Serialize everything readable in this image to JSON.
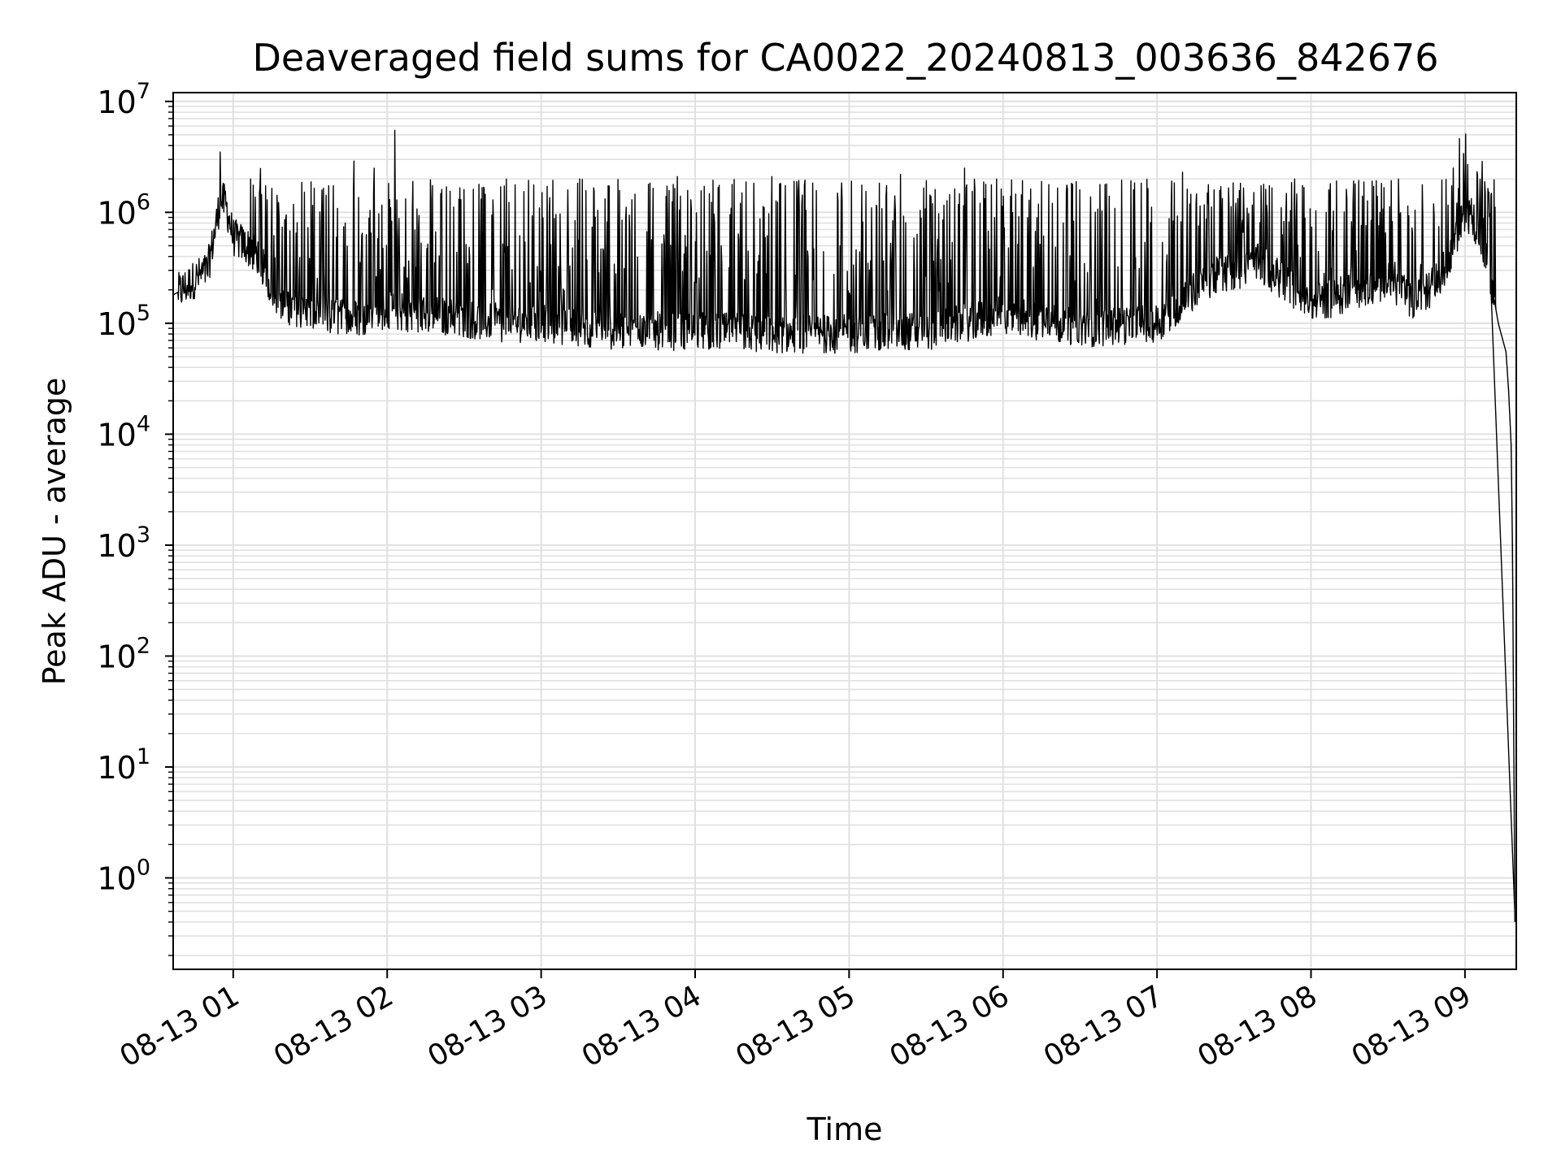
{
  "chart_data": {
    "type": "line",
    "title": "Deaveraged field sums for CA0022_20240813_003636_842676",
    "xlabel": "Time",
    "ylabel": "Peak ADU - average",
    "yscale": "log",
    "ylim": [
      0.15,
      12000000
    ],
    "xlim": [
      "2024-08-13 00:36:36",
      "2024-08-13 09:20:00"
    ],
    "x_ticks": [
      {
        "label": "08-13 01",
        "time": "2024-08-13 01:00"
      },
      {
        "label": "08-13 02",
        "time": "2024-08-13 02:00"
      },
      {
        "label": "08-13 03",
        "time": "2024-08-13 03:00"
      },
      {
        "label": "08-13 04",
        "time": "2024-08-13 04:00"
      },
      {
        "label": "08-13 05",
        "time": "2024-08-13 05:00"
      },
      {
        "label": "08-13 06",
        "time": "2024-08-13 06:00"
      },
      {
        "label": "08-13 07",
        "time": "2024-08-13 07:00"
      },
      {
        "label": "08-13 08",
        "time": "2024-08-13 08:00"
      },
      {
        "label": "08-13 09",
        "time": "2024-08-13 09:00"
      }
    ],
    "y_ticks": [
      {
        "value": 1,
        "base": "10",
        "exp": "0"
      },
      {
        "value": 10,
        "base": "10",
        "exp": "1"
      },
      {
        "value": 100,
        "base": "10",
        "exp": "2"
      },
      {
        "value": 1000,
        "base": "10",
        "exp": "3"
      },
      {
        "value": 10000,
        "base": "10",
        "exp": "4"
      },
      {
        "value": 100000,
        "base": "10",
        "exp": "5"
      },
      {
        "value": 1000000,
        "base": "10",
        "exp": "6"
      },
      {
        "value": 10000000,
        "base": "10",
        "exp": "7"
      }
    ],
    "grid": true,
    "line_color": "#000000",
    "grid_color": "#e0e0e0",
    "series": [
      {
        "x": [
          "2024-08-13 00:36:36",
          "2024-08-13 00:40",
          "2024-08-13 00:45",
          "2024-08-13 00:50",
          "2024-08-13 00:53",
          "2024-08-13 00:55",
          "2024-08-13 00:57",
          "2024-08-13 01:00",
          "2024-08-13 01:05",
          "2024-08-13 01:10",
          "2024-08-13 01:15",
          "2024-08-13 01:20",
          "2024-08-13 01:30",
          "2024-08-13 01:45",
          "2024-08-13 02:00",
          "2024-08-13 02:15",
          "2024-08-13 02:30",
          "2024-08-13 02:45",
          "2024-08-13 03:00",
          "2024-08-13 03:30",
          "2024-08-13 04:00",
          "2024-08-13 04:30",
          "2024-08-13 05:00",
          "2024-08-13 05:30",
          "2024-08-13 06:00",
          "2024-08-13 06:30",
          "2024-08-13 07:00",
          "2024-08-13 07:20",
          "2024-08-13 07:40",
          "2024-08-13 08:00",
          "2024-08-13 08:20",
          "2024-08-13 08:30",
          "2024-08-13 08:40",
          "2024-08-13 08:50",
          "2024-08-13 08:55",
          "2024-08-13 09:00",
          "2024-08-13 09:03",
          "2024-08-13 09:06",
          "2024-08-13 09:10",
          "2024-08-13 09:13",
          "2024-08-13 09:16",
          "2024-08-13 09:17",
          "2024-08-13 09:18",
          "2024-08-13 09:18:30",
          "2024-08-13 09:19:00",
          "2024-08-13 09:19:10",
          "2024-08-13 09:19:20",
          "2024-08-13 09:19:25"
        ],
        "values": [
          180000,
          200000,
          250000,
          300000,
          700000,
          1300000,
          1200000,
          600000,
          500000,
          400000,
          200000,
          150000,
          120000,
          110000,
          130000,
          120000,
          110000,
          100000,
          100000,
          85000,
          85000,
          80000,
          80000,
          85000,
          120000,
          90000,
          100000,
          250000,
          350000,
          150000,
          200000,
          250000,
          150000,
          250000,
          450000,
          1000000,
          900000,
          600000,
          250000,
          100000,
          55000,
          25000,
          8000,
          1000,
          20,
          5,
          1,
          0.4
        ]
      }
    ],
    "spikes": [
      {
        "time": "2024-08-13 00:55",
        "value": 3500000
      },
      {
        "time": "2024-08-13 01:47",
        "value": 2900000
      },
      {
        "time": "2024-08-13 01:55",
        "value": 2500000
      },
      {
        "time": "2024-08-13 02:03",
        "value": 5500000
      },
      {
        "time": "2024-08-13 02:10",
        "value": 1900000
      },
      {
        "time": "2024-08-13 03:15",
        "value": 2000000
      },
      {
        "time": "2024-08-13 03:53",
        "value": 2100000
      },
      {
        "time": "2024-08-13 04:30",
        "value": 2100000
      },
      {
        "time": "2024-08-13 05:20",
        "value": 2200000
      },
      {
        "time": "2024-08-13 05:45",
        "value": 2500000
      },
      {
        "time": "2024-08-13 06:15",
        "value": 1900000
      },
      {
        "time": "2024-08-13 07:10",
        "value": 2300000
      },
      {
        "time": "2024-08-13 08:20",
        "value": 1400000
      },
      {
        "time": "2024-08-13 09:01",
        "value": 2700000
      }
    ]
  }
}
